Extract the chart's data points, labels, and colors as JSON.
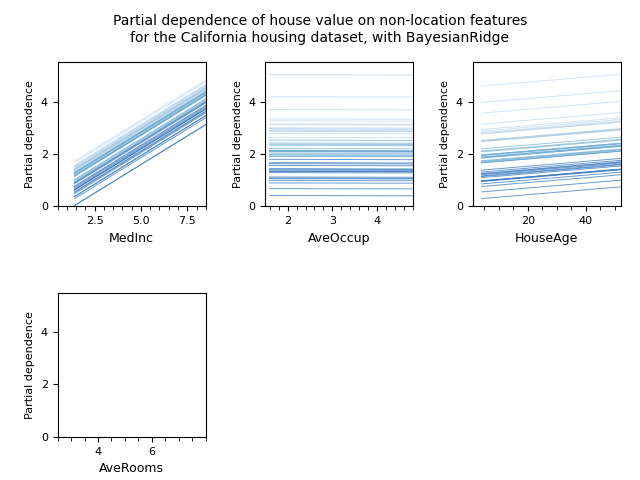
{
  "title": "Partial dependence of house value on non-location features\nfor the California housing dataset, with BayesianRidge",
  "features_order": [
    "MedInc",
    "AveOccup",
    "HouseAge",
    "AveRooms"
  ],
  "feature_indices": {
    "MedInc": 0,
    "AveOccup": 5,
    "HouseAge": 1,
    "AveRooms": 4
  },
  "background_color": "#ffffff",
  "line_color_dark": "#3a7abf",
  "line_color_mid": "#6aaad4",
  "line_color_light": "#aacce8",
  "figsize": [
    6.4,
    4.8
  ],
  "dpi": 100,
  "ylim": [
    0,
    5.5
  ],
  "ylabel": "Partial dependence",
  "xticks": {
    "MedInc": [
      2.5,
      5.0,
      7.5
    ],
    "AveOccup": [
      2,
      3,
      4
    ],
    "HouseAge": [
      20,
      40
    ],
    "AveRooms": [
      4,
      6
    ]
  },
  "xlim": {
    "MedInc": [
      0.5,
      8.5
    ],
    "AveOccup": [
      1.5,
      4.8
    ],
    "HouseAge": [
      1,
      52
    ],
    "AveRooms": [
      2.5,
      8.0
    ]
  }
}
